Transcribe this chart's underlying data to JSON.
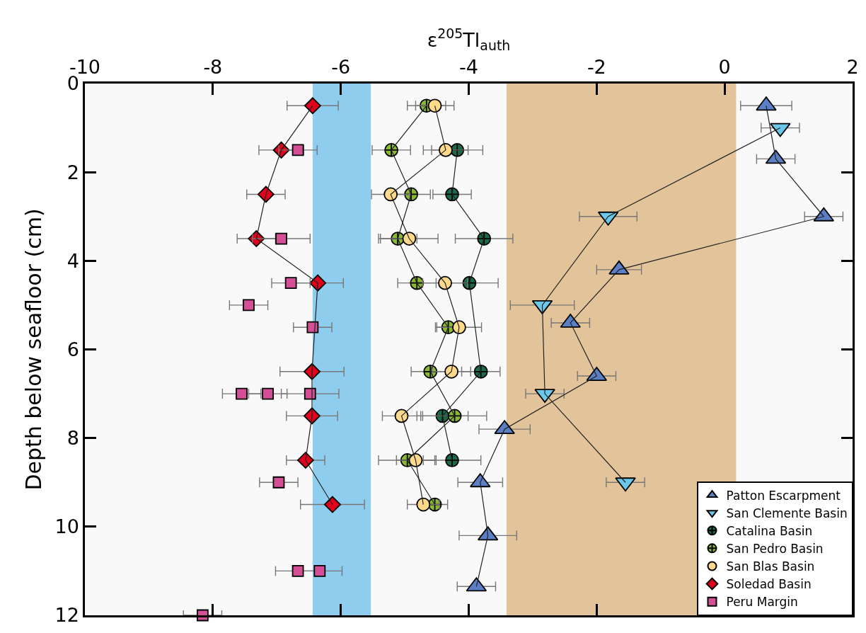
{
  "chart_data": {
    "type": "line",
    "xlabel": "ε$^{205}$Tl$_{auth}$",
    "ylabel": "Depth below seafloor (cm)",
    "xlim": [
      -10,
      2
    ],
    "xticks": [
      -10,
      -8,
      -6,
      -4,
      -2,
      0,
      2
    ],
    "ylim": [
      12,
      0
    ],
    "yticks": [
      0,
      2,
      4,
      6,
      8,
      10,
      12
    ],
    "grid": false,
    "legend": "bottom right",
    "bands": [
      {
        "axis": "x",
        "from": -6.44,
        "to": -5.53,
        "color": "#8fcdef"
      },
      {
        "axis": "x",
        "from": -3.41,
        "to": 0.18,
        "color": "#e3c49a"
      }
    ],
    "series": [
      {
        "name": "Patton Escarpment",
        "color": "#5b7fc4",
        "marker": "triangle",
        "x": [
          0.65,
          0.8,
          1.55,
          -1.65,
          -2.41,
          -2.0,
          -3.44,
          -3.82,
          -3.7,
          -3.88
        ],
        "values": [
          0.5,
          1.7,
          3.0,
          4.2,
          5.4,
          6.6,
          7.8,
          9.0,
          10.2,
          11.35
        ],
        "xerrors": [
          0.4,
          0.3,
          0.3,
          0.35,
          0.3,
          0.3,
          0.4,
          0.35,
          0.45,
          0.3
        ]
      },
      {
        "name": "San Clemente Basin",
        "color": "#6cc8ea",
        "marker": "triangle-down",
        "x": [
          0.87,
          -1.82,
          -2.85,
          -2.81,
          -1.55
        ],
        "values": [
          1.0,
          3.0,
          5.0,
          7.0,
          9.0
        ],
        "xerrors": [
          0.3,
          0.45,
          0.5,
          0.3,
          0.3
        ]
      },
      {
        "name": "Catalina Basin",
        "color": "#1b6b4a",
        "marker": "cross",
        "x": [
          -4.18,
          -4.26,
          -3.76,
          -3.99,
          -3.81,
          -4.41,
          -4.26
        ],
        "values": [
          1.5,
          2.5,
          3.5,
          4.5,
          6.5,
          7.5,
          8.5
        ],
        "xerrors": [
          0.4,
          0.3,
          0.45,
          0.45,
          0.3,
          0.4,
          0.45
        ]
      },
      {
        "name": "San Pedro Basin",
        "color": "#8ab833",
        "marker": "cross",
        "x": [
          -4.66,
          -5.21,
          -4.9,
          -5.11,
          -4.81,
          -4.32,
          -4.6,
          -4.22,
          -4.96,
          -4.53
        ],
        "values": [
          0.5,
          1.5,
          2.5,
          3.5,
          4.5,
          5.5,
          6.5,
          7.5,
          8.5,
          9.5
        ],
        "xerrors": [
          0.3,
          0.3,
          0.3,
          0.3,
          0.3,
          0.2,
          0.3,
          0.5,
          0.45,
          0.2
        ]
      },
      {
        "name": "San Blas Basin",
        "color": "#fed98a",
        "marker": "circle",
        "x": [
          -4.53,
          -4.36,
          -5.22,
          -4.93,
          -4.37,
          -4.15,
          -4.27,
          -5.05,
          -4.83,
          -4.71
        ],
        "values": [
          0.5,
          1.5,
          2.5,
          3.5,
          4.5,
          5.5,
          6.5,
          7.5,
          8.5,
          9.5
        ],
        "xerrors": [
          0.3,
          0.35,
          0.3,
          0.45,
          0.35,
          0.35,
          0.3,
          0.3,
          0.3,
          0.25
        ]
      },
      {
        "name": "Soledad Basin",
        "color": "#e0001b",
        "marker": "diamond",
        "x": [
          -6.44,
          -6.93,
          -7.17,
          -7.32,
          -6.36,
          -6.45,
          -6.45,
          -6.55,
          -6.13
        ],
        "values": [
          0.5,
          1.5,
          2.5,
          3.5,
          4.5,
          6.5,
          7.5,
          8.5,
          9.5
        ],
        "xerrors": [
          0.4,
          0.35,
          0.3,
          0.3,
          0.4,
          0.5,
          0.4,
          0.3,
          0.5
        ]
      },
      {
        "name": "Peru Margin",
        "type": "scatter",
        "color": "#d54f96",
        "marker": "square",
        "x": [
          -6.67,
          -6.93,
          -6.78,
          -7.44,
          -6.44,
          -7.55,
          -7.14,
          -6.48,
          -6.97,
          -6.67,
          -6.33,
          -8.16
        ],
        "values": [
          1.5,
          3.5,
          4.5,
          5.0,
          5.5,
          7.0,
          7.0,
          7.0,
          9.0,
          11.0,
          11.0,
          12.0
        ],
        "xerrors": [
          0.3,
          0.45,
          0.3,
          0.3,
          0.3,
          0.3,
          0.3,
          0.45,
          0.3,
          0.35,
          0.35,
          0.3
        ]
      }
    ]
  }
}
